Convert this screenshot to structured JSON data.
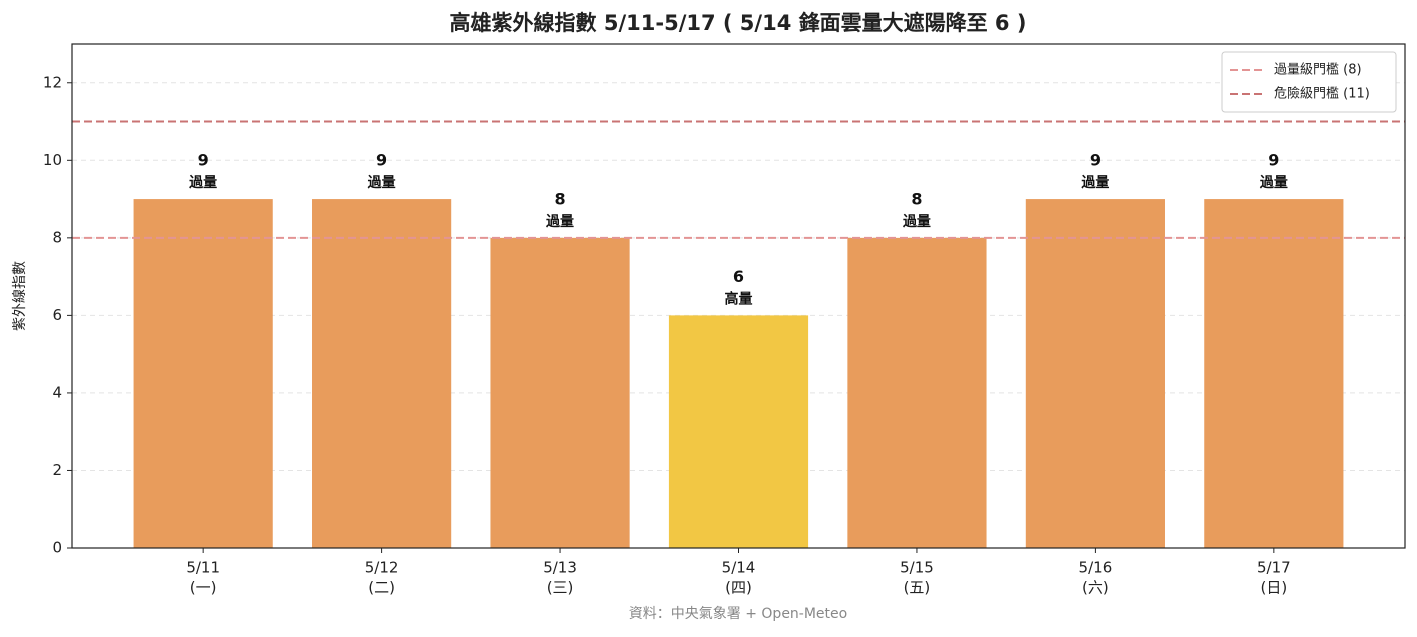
{
  "chart_data": {
    "type": "bar",
    "title": "高雄紫外線指數 5/11-5/17 ( 5/14 鋒面雲量大遮陽降至 6 )",
    "ylabel": "紫外線指數",
    "source": "資料：中央氣象署 + Open-Meteo",
    "categories": [
      "5/11",
      "5/12",
      "5/13",
      "5/14",
      "5/15",
      "5/16",
      "5/17"
    ],
    "weekday_labels": [
      "(一)",
      "(二)",
      "(三)",
      "(四)",
      "(五)",
      "(六)",
      "(日)"
    ],
    "values": [
      9,
      9,
      8,
      6,
      8,
      9,
      9
    ],
    "level_labels": [
      "過量",
      "過量",
      "過量",
      "高量",
      "過量",
      "過量",
      "過量"
    ],
    "colors": [
      "#e89c5c",
      "#e89c5c",
      "#e89c5c",
      "#f2c744",
      "#e89c5c",
      "#e89c5c",
      "#e89c5c"
    ],
    "ylim": [
      0,
      13
    ],
    "yticks": [
      0,
      2,
      4,
      6,
      8,
      10,
      12
    ],
    "grid": true,
    "legend_position": "upper right",
    "reference_lines": [
      {
        "name": "過量級門檻 (8)",
        "value": 8,
        "color": "#e39494"
      },
      {
        "name": "危險級門檻 (11)",
        "value": 11,
        "color": "#c97373"
      }
    ]
  }
}
